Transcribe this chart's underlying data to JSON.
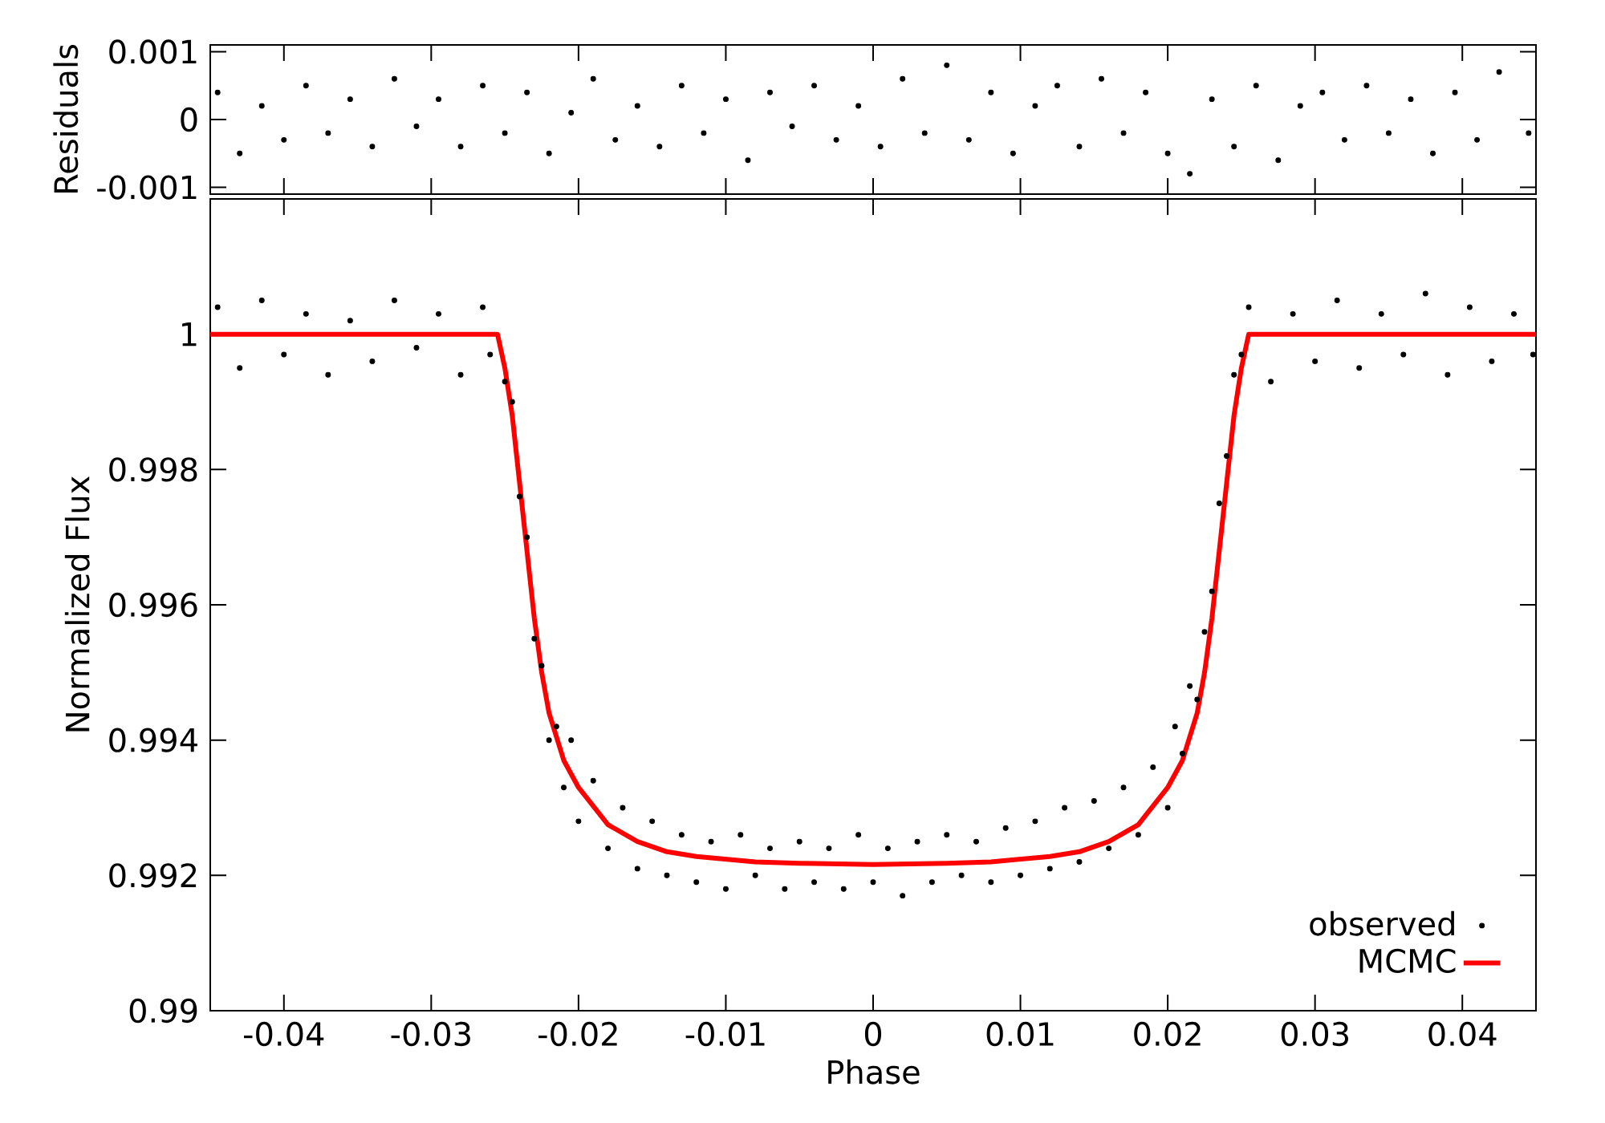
{
  "chart_data": [
    {
      "type": "scatter",
      "ylabel": "Residuals",
      "color": "#000000",
      "marker": "circle",
      "x": [
        -0.0445,
        -0.043,
        -0.0415,
        -0.04,
        -0.0385,
        -0.037,
        -0.0355,
        -0.034,
        -0.0325,
        -0.031,
        -0.0295,
        -0.028,
        -0.0265,
        -0.025,
        -0.0235,
        -0.022,
        -0.0205,
        -0.019,
        -0.0175,
        -0.016,
        -0.0145,
        -0.013,
        -0.0115,
        -0.01,
        -0.0085,
        -0.007,
        -0.0055,
        -0.004,
        -0.0025,
        -0.001,
        0.0005,
        0.002,
        0.0035,
        0.005,
        0.0065,
        0.008,
        0.0095,
        0.011,
        0.0125,
        0.014,
        0.0155,
        0.017,
        0.0185,
        0.02,
        0.0215,
        0.023,
        0.0245,
        0.026,
        0.0275,
        0.029,
        0.0305,
        0.032,
        0.0335,
        0.035,
        0.0365,
        0.038,
        0.0395,
        0.041,
        0.0425,
        0.0445
      ],
      "values": [
        0.0004,
        -0.0005,
        0.0002,
        -0.0003,
        0.0005,
        -0.0002,
        0.0003,
        -0.0004,
        0.0006,
        -0.0001,
        0.0003,
        -0.0004,
        0.0005,
        -0.0002,
        0.0004,
        -0.0005,
        0.0001,
        0.0006,
        -0.0003,
        0.0002,
        -0.0004,
        0.0005,
        -0.0002,
        0.0003,
        -0.0006,
        0.0004,
        -0.0001,
        0.0005,
        -0.0003,
        0.0002,
        -0.0004,
        0.0006,
        -0.0002,
        0.0008,
        -0.0003,
        0.0004,
        -0.0005,
        0.0002,
        0.0005,
        -0.0004,
        0.0006,
        -0.0002,
        0.0004,
        -0.0005,
        -0.0008,
        0.0003,
        -0.0004,
        0.0005,
        -0.0006,
        0.0002,
        0.0004,
        -0.0003,
        0.0005,
        -0.0002,
        0.0003,
        -0.0005,
        0.0004,
        -0.0003,
        0.0007,
        -0.0002
      ],
      "xlim": [
        -0.045,
        0.045
      ],
      "ylim": [
        -0.0011,
        0.0011
      ],
      "xticks": [
        -0.04,
        -0.03,
        -0.02,
        -0.01,
        0,
        0.01,
        0.02,
        0.03,
        0.04
      ],
      "yticks": [
        -0.001,
        0,
        0.001
      ],
      "tick_labels": "y"
    },
    {
      "type": "scatter",
      "xlabel": "Phase",
      "ylabel": "Normalized Flux",
      "legend": "bottom right",
      "xlim": [
        -0.045,
        0.045
      ],
      "ylim": [
        0.99,
        1.002
      ],
      "xticks": [
        -0.04,
        -0.03,
        -0.02,
        -0.01,
        0,
        0.01,
        0.02,
        0.03,
        0.04
      ],
      "yticks": [
        0.99,
        0.992,
        0.994,
        0.996,
        0.998,
        1
      ],
      "series": [
        {
          "name": "observed",
          "type": "scatter",
          "marker": "circle",
          "color": "#000000",
          "x": [
            -0.0445,
            -0.043,
            -0.0415,
            -0.04,
            -0.0385,
            -0.037,
            -0.0355,
            -0.034,
            -0.0325,
            -0.031,
            -0.0295,
            -0.028,
            -0.0265,
            -0.026,
            -0.025,
            -0.0245,
            -0.024,
            -0.0235,
            -0.023,
            -0.0225,
            -0.022,
            -0.0215,
            -0.021,
            -0.0205,
            -0.02,
            -0.019,
            -0.018,
            -0.017,
            -0.016,
            -0.015,
            -0.014,
            -0.013,
            -0.012,
            -0.011,
            -0.01,
            -0.009,
            -0.008,
            -0.007,
            -0.006,
            -0.005,
            -0.004,
            -0.003,
            -0.002,
            -0.001,
            0,
            0.001,
            0.002,
            0.003,
            0.004,
            0.005,
            0.006,
            0.007,
            0.008,
            0.009,
            0.01,
            0.011,
            0.012,
            0.013,
            0.014,
            0.015,
            0.016,
            0.017,
            0.018,
            0.019,
            0.02,
            0.0205,
            0.021,
            0.0215,
            0.022,
            0.0225,
            0.023,
            0.0235,
            0.024,
            0.0245,
            0.025,
            0.0255,
            0.027,
            0.0285,
            0.03,
            0.0315,
            0.033,
            0.0345,
            0.036,
            0.0375,
            0.039,
            0.0405,
            0.042,
            0.0435,
            0.0448
          ],
          "values": [
            1.0004,
            0.9995,
            1.0005,
            0.9997,
            1.0003,
            0.9994,
            1.0002,
            0.9996,
            1.0005,
            0.9998,
            1.0003,
            0.9994,
            1.0004,
            0.9997,
            0.9993,
            0.999,
            0.9976,
            0.997,
            0.9955,
            0.9951,
            0.994,
            0.9942,
            0.9933,
            0.994,
            0.9928,
            0.9934,
            0.9924,
            0.993,
            0.9921,
            0.9928,
            0.992,
            0.9926,
            0.9919,
            0.9925,
            0.9918,
            0.9926,
            0.992,
            0.9924,
            0.9918,
            0.9925,
            0.9919,
            0.9924,
            0.9918,
            0.9926,
            0.9919,
            0.9924,
            0.9917,
            0.9925,
            0.9919,
            0.9926,
            0.992,
            0.9925,
            0.9919,
            0.9927,
            0.992,
            0.9928,
            0.9921,
            0.993,
            0.9922,
            0.9931,
            0.9924,
            0.9933,
            0.9926,
            0.9936,
            0.993,
            0.9942,
            0.9938,
            0.9948,
            0.9946,
            0.9956,
            0.9962,
            0.9975,
            0.9982,
            0.9994,
            0.9997,
            1.0004,
            0.9993,
            1.0003,
            0.9996,
            1.0005,
            0.9995,
            1.0003,
            0.9997,
            1.0006,
            0.9994,
            1.0004,
            0.9996,
            1.0003,
            0.9997
          ]
        },
        {
          "name": "MCMC",
          "type": "line",
          "line_style": "solid",
          "color": "#ff0000",
          "x": [
            -0.045,
            -0.0255,
            -0.025,
            -0.0245,
            -0.024,
            -0.0235,
            -0.023,
            -0.0225,
            -0.022,
            -0.021,
            -0.02,
            -0.018,
            -0.016,
            -0.014,
            -0.012,
            -0.01,
            -0.008,
            -0.005,
            0,
            0.005,
            0.008,
            0.01,
            0.012,
            0.014,
            0.016,
            0.018,
            0.02,
            0.021,
            0.022,
            0.0225,
            0.023,
            0.0235,
            0.024,
            0.0245,
            0.025,
            0.0255,
            0.045
          ],
          "values": [
            1,
            1,
            0.9995,
            0.9988,
            0.9978,
            0.9968,
            0.9958,
            0.995,
            0.9944,
            0.9937,
            0.9933,
            0.99275,
            0.9925,
            0.99235,
            0.99228,
            0.99224,
            0.9922,
            0.99218,
            0.99216,
            0.99218,
            0.9922,
            0.99224,
            0.99228,
            0.99235,
            0.9925,
            0.99275,
            0.9933,
            0.9937,
            0.9944,
            0.995,
            0.9958,
            0.9968,
            0.9978,
            0.9988,
            0.9995,
            1,
            1
          ]
        }
      ]
    }
  ]
}
